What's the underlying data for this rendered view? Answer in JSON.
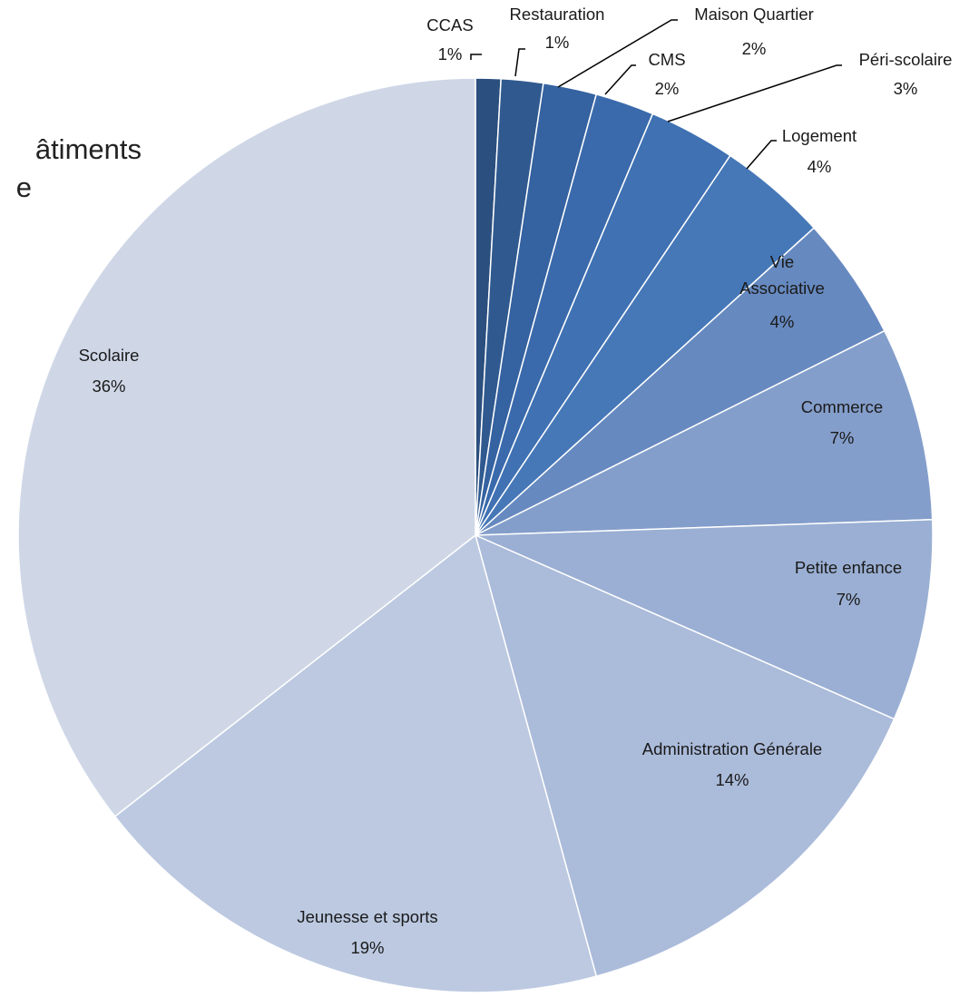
{
  "chart_data": {
    "type": "pie",
    "title_fragments": [
      "âtiments",
      "e"
    ],
    "start_angle_deg": 0,
    "direction": "clockwise",
    "slices": [
      {
        "label": "CCAS",
        "pct_label": "1%",
        "value": 0.9,
        "color": "#2b4f7e"
      },
      {
        "label": "Restauration",
        "pct_label": "1%",
        "value": 1.5,
        "color": "#305a8f"
      },
      {
        "label": "Maison Quartier",
        "pct_label": "2%",
        "value": 1.9,
        "color": "#3562a0"
      },
      {
        "label": "CMS",
        "pct_label": "2%",
        "value": 2.1,
        "color": "#3a6aac"
      },
      {
        "label": "Péri-scolaire",
        "pct_label": "3%",
        "value": 3.1,
        "color": "#3f71b3"
      },
      {
        "label": "Logement",
        "pct_label": "4%",
        "value": 3.9,
        "color": "#4678b8"
      },
      {
        "label": "Vie Associative",
        "pct_label": "4%",
        "value": 4.4,
        "color": "#6689bf"
      },
      {
        "label": "Commerce",
        "pct_label": "7%",
        "value": 6.9,
        "color": "#849ecb"
      },
      {
        "label": "Petite enfance",
        "pct_label": "7%",
        "value": 7.2,
        "color": "#9aafd3"
      },
      {
        "label": "Administration Générale",
        "pct_label": "14%",
        "value": 14.3,
        "color": "#abbbda"
      },
      {
        "label": "Jeunesse et sports",
        "pct_label": "19%",
        "value": 18.9,
        "color": "#bcc9e1"
      },
      {
        "label": "Scolaire",
        "pct_label": "36%",
        "value": 35.9,
        "color": "#cfd7e7"
      }
    ]
  }
}
